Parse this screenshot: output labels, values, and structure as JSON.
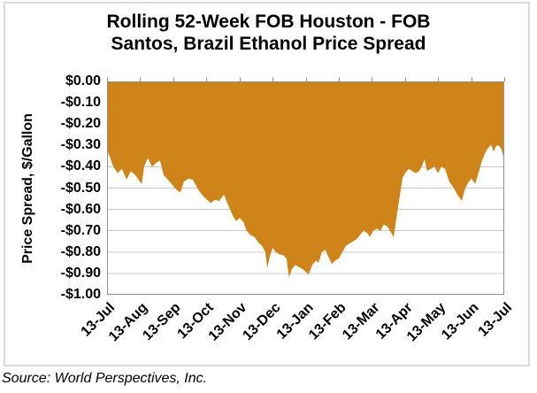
{
  "title_line1": "Rolling 52-Week FOB Houston - FOB",
  "title_line2": "Santos, Brazil Ethanol Price Spread",
  "source_note": "Source: World Perspectives, Inc.",
  "chart_data": {
    "type": "area",
    "title": "Rolling 52-Week FOB Houston - FOB Santos, Brazil Ethanol Price Spread",
    "xlabel": "",
    "ylabel": "Price Spread, $/Gallon",
    "ylim": [
      -1.0,
      0.0
    ],
    "ytick_step": 0.1,
    "ytick_labels": [
      "$0.00",
      "-$0.10",
      "-$0.20",
      "-$0.30",
      "-$0.40",
      "-$0.50",
      "-$0.60",
      "-$0.70",
      "-$0.80",
      "-$0.90",
      "-$1.00"
    ],
    "xtick_labels": [
      "13-Jul",
      "13-Aug",
      "13-Sep",
      "13-Oct",
      "13-Nov",
      "13-Dec",
      "13-Jan",
      "13-Feb",
      "13-Mar",
      "13-Apr",
      "13-May",
      "13-Jun",
      "13-Jul"
    ],
    "xlim": [
      0,
      12
    ],
    "grid": true,
    "legend": "none",
    "colors": {
      "area_fill": "#CF8419",
      "gridline": "#C9C9C9",
      "axis": "#8F8F8F"
    },
    "points": [
      [
        0.0,
        -0.32
      ],
      [
        0.1,
        -0.36
      ],
      [
        0.19,
        -0.4
      ],
      [
        0.32,
        -0.43
      ],
      [
        0.45,
        -0.41
      ],
      [
        0.59,
        -0.46
      ],
      [
        0.72,
        -0.42
      ],
      [
        0.86,
        -0.44
      ],
      [
        0.99,
        -0.47
      ],
      [
        1.05,
        -0.48
      ],
      [
        1.12,
        -0.4
      ],
      [
        1.23,
        -0.36
      ],
      [
        1.36,
        -0.4
      ],
      [
        1.5,
        -0.38
      ],
      [
        1.6,
        -0.37
      ],
      [
        1.71,
        -0.44
      ],
      [
        1.84,
        -0.46
      ],
      [
        2.0,
        -0.49
      ],
      [
        2.11,
        -0.51
      ],
      [
        2.22,
        -0.52
      ],
      [
        2.32,
        -0.47
      ],
      [
        2.46,
        -0.455
      ],
      [
        2.59,
        -0.46
      ],
      [
        2.73,
        -0.5
      ],
      [
        2.86,
        -0.53
      ],
      [
        2.99,
        -0.55
      ],
      [
        3.13,
        -0.57
      ],
      [
        3.26,
        -0.555
      ],
      [
        3.39,
        -0.56
      ],
      [
        3.53,
        -0.53
      ],
      [
        3.66,
        -0.58
      ],
      [
        3.8,
        -0.63
      ],
      [
        3.9,
        -0.655
      ],
      [
        4.01,
        -0.64
      ],
      [
        4.12,
        -0.66
      ],
      [
        4.22,
        -0.7
      ],
      [
        4.33,
        -0.72
      ],
      [
        4.46,
        -0.73
      ],
      [
        4.57,
        -0.755
      ],
      [
        4.68,
        -0.77
      ],
      [
        4.78,
        -0.8
      ],
      [
        4.84,
        -0.875
      ],
      [
        4.92,
        -0.82
      ],
      [
        5.0,
        -0.78
      ],
      [
        5.1,
        -0.8
      ],
      [
        5.21,
        -0.81
      ],
      [
        5.32,
        -0.815
      ],
      [
        5.42,
        -0.83
      ],
      [
        5.5,
        -0.92
      ],
      [
        5.58,
        -0.88
      ],
      [
        5.69,
        -0.86
      ],
      [
        5.8,
        -0.87
      ],
      [
        5.91,
        -0.88
      ],
      [
        5.99,
        -0.89
      ],
      [
        6.09,
        -0.905
      ],
      [
        6.2,
        -0.86
      ],
      [
        6.31,
        -0.84
      ],
      [
        6.39,
        -0.85
      ],
      [
        6.49,
        -0.8
      ],
      [
        6.6,
        -0.79
      ],
      [
        6.71,
        -0.83
      ],
      [
        6.79,
        -0.855
      ],
      [
        6.89,
        -0.84
      ],
      [
        7.0,
        -0.83
      ],
      [
        7.11,
        -0.8
      ],
      [
        7.22,
        -0.77
      ],
      [
        7.32,
        -0.76
      ],
      [
        7.43,
        -0.75
      ],
      [
        7.54,
        -0.74
      ],
      [
        7.64,
        -0.72
      ],
      [
        7.75,
        -0.7
      ],
      [
        7.86,
        -0.71
      ],
      [
        7.94,
        -0.73
      ],
      [
        8.04,
        -0.7
      ],
      [
        8.15,
        -0.69
      ],
      [
        8.26,
        -0.7
      ],
      [
        8.36,
        -0.67
      ],
      [
        8.47,
        -0.68
      ],
      [
        8.55,
        -0.7
      ],
      [
        8.66,
        -0.73
      ],
      [
        8.79,
        -0.59
      ],
      [
        8.93,
        -0.45
      ],
      [
        9.01,
        -0.43
      ],
      [
        9.11,
        -0.41
      ],
      [
        9.22,
        -0.42
      ],
      [
        9.33,
        -0.43
      ],
      [
        9.43,
        -0.42
      ],
      [
        9.51,
        -0.4
      ],
      [
        9.59,
        -0.365
      ],
      [
        9.67,
        -0.42
      ],
      [
        9.78,
        -0.41
      ],
      [
        9.89,
        -0.4
      ],
      [
        10.0,
        -0.43
      ],
      [
        10.1,
        -0.4
      ],
      [
        10.21,
        -0.41
      ],
      [
        10.34,
        -0.47
      ],
      [
        10.48,
        -0.5
      ],
      [
        10.58,
        -0.53
      ],
      [
        10.72,
        -0.56
      ],
      [
        10.82,
        -0.5
      ],
      [
        10.93,
        -0.47
      ],
      [
        11.01,
        -0.455
      ],
      [
        11.12,
        -0.48
      ],
      [
        11.22,
        -0.43
      ],
      [
        11.33,
        -0.37
      ],
      [
        11.44,
        -0.33
      ],
      [
        11.52,
        -0.31
      ],
      [
        11.6,
        -0.295
      ],
      [
        11.68,
        -0.33
      ],
      [
        11.76,
        -0.3
      ],
      [
        11.84,
        -0.3
      ],
      [
        11.92,
        -0.32
      ],
      [
        12.0,
        -0.37
      ]
    ]
  }
}
